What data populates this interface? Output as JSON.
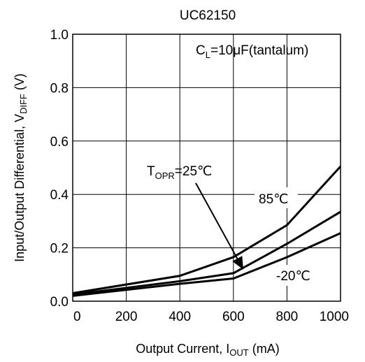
{
  "chart_data": {
    "type": "line",
    "title": "UC62150",
    "xlabel": {
      "main": "Output Current, I",
      "sub": "OUT",
      "unit": " (mA)"
    },
    "ylabel": {
      "main": "Input/Output Differential,  V",
      "sub": "DIFF",
      "unit": " (V)"
    },
    "xlim": [
      0,
      1000
    ],
    "ylim": [
      0,
      1.0
    ],
    "x_ticks": [
      0,
      200,
      400,
      600,
      800,
      1000
    ],
    "x_tick_labels": [
      "0",
      "200",
      "400",
      "600",
      "800",
      "1000"
    ],
    "y_ticks": [
      0,
      0.2,
      0.4,
      0.6,
      0.8,
      1.0
    ],
    "y_tick_labels": [
      "0.0",
      "0.2",
      "0.4",
      "0.6",
      "0.8",
      "1.0"
    ],
    "grid": true,
    "series": [
      {
        "name": "85℃",
        "x": [
          0,
          400,
          600,
          800,
          1000
        ],
        "y": [
          0.03,
          0.095,
          0.165,
          0.285,
          0.505
        ]
      },
      {
        "name": "25℃",
        "x": [
          0,
          400,
          600,
          800,
          1000
        ],
        "y": [
          0.025,
          0.075,
          0.105,
          0.215,
          0.335
        ]
      },
      {
        "name": "-20℃",
        "x": [
          0,
          400,
          600,
          800,
          1000
        ],
        "y": [
          0.02,
          0.065,
          0.085,
          0.165,
          0.255
        ]
      }
    ],
    "annotations": {
      "condition": {
        "main": "C",
        "sub": "L",
        "rest": "=10μF(tantalum)"
      },
      "topr": {
        "main": "T",
        "sub": "OPR",
        "rest": "=25℃"
      },
      "label_85": "85℃",
      "label_m20": "-20℃"
    }
  }
}
